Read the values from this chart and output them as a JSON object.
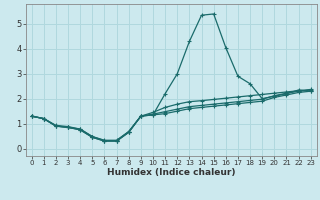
{
  "xlabel": "Humidex (Indice chaleur)",
  "xlim": [
    -0.5,
    23.5
  ],
  "ylim": [
    -0.3,
    5.8
  ],
  "xticks": [
    0,
    1,
    2,
    3,
    4,
    5,
    6,
    7,
    8,
    9,
    10,
    11,
    12,
    13,
    14,
    15,
    16,
    17,
    18,
    19,
    20,
    21,
    22,
    23
  ],
  "yticks": [
    0,
    1,
    2,
    3,
    4,
    5
  ],
  "bg_color": "#cce9ee",
  "line_color": "#1a6b6b",
  "grid_color": "#b0d8de",
  "curves": {
    "line1_x": [
      0,
      1,
      2,
      3,
      4,
      5,
      6,
      7,
      8,
      9,
      10,
      11,
      12,
      13,
      14,
      15,
      16,
      17,
      18,
      19,
      20,
      21,
      22,
      23
    ],
    "line1_y": [
      1.3,
      1.2,
      0.9,
      0.85,
      0.75,
      0.45,
      0.3,
      0.3,
      0.65,
      1.3,
      1.35,
      1.4,
      1.5,
      1.6,
      1.65,
      1.7,
      1.75,
      1.8,
      1.85,
      1.9,
      2.05,
      2.15,
      2.25,
      2.3
    ],
    "line2_x": [
      0,
      1,
      2,
      3,
      4,
      5,
      6,
      7,
      8,
      9,
      10,
      11,
      12,
      13,
      14,
      15,
      16,
      17,
      18,
      19,
      20,
      21,
      22,
      23
    ],
    "line2_y": [
      1.3,
      1.2,
      0.93,
      0.88,
      0.78,
      0.48,
      0.33,
      0.33,
      0.68,
      1.3,
      1.38,
      1.48,
      1.58,
      1.68,
      1.73,
      1.78,
      1.83,
      1.88,
      1.93,
      1.98,
      2.12,
      2.22,
      2.3,
      2.35
    ],
    "line3_x": [
      0,
      1,
      2,
      3,
      4,
      5,
      6,
      7,
      8,
      9,
      10,
      11,
      12,
      13,
      14,
      15,
      16,
      17,
      18,
      19,
      20,
      21,
      22,
      23
    ],
    "line3_y": [
      1.3,
      1.2,
      0.9,
      0.85,
      0.75,
      0.45,
      0.3,
      0.3,
      0.65,
      1.3,
      1.35,
      2.2,
      3.0,
      4.3,
      5.35,
      5.4,
      4.05,
      2.9,
      2.6,
      2.0,
      2.1,
      2.2,
      2.35,
      2.3
    ],
    "line4_x": [
      0,
      1,
      2,
      3,
      4,
      5,
      6,
      7,
      8,
      9,
      10,
      11,
      12,
      13,
      14,
      15,
      16,
      17,
      18,
      19,
      20,
      21,
      22,
      23
    ],
    "line4_y": [
      1.3,
      1.2,
      0.9,
      0.85,
      0.78,
      0.48,
      0.32,
      0.32,
      0.68,
      1.3,
      1.45,
      1.65,
      1.78,
      1.88,
      1.92,
      1.97,
      2.02,
      2.07,
      2.12,
      2.17,
      2.22,
      2.27,
      2.32,
      2.37
    ]
  }
}
